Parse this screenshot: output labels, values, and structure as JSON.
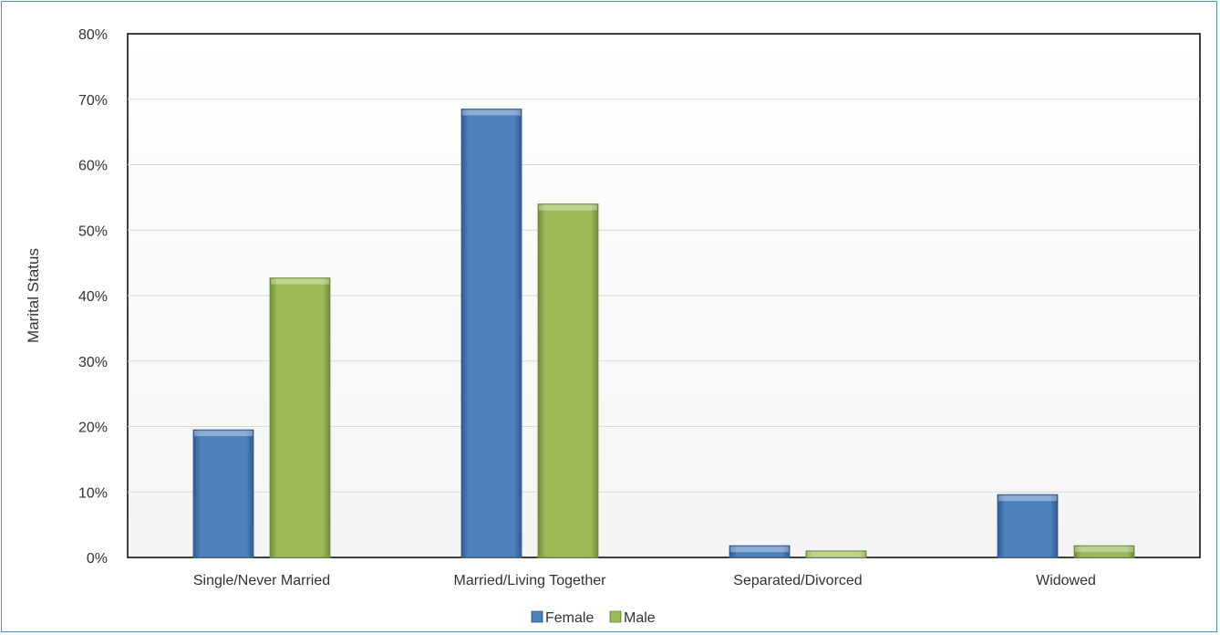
{
  "chart_data": {
    "type": "bar",
    "ylabel": "Marital Status",
    "xlabel": "",
    "categories": [
      "Single/Never Married",
      "Married/Living Together",
      "Separated/Divorced",
      "Widowed"
    ],
    "series": [
      {
        "name": "Female",
        "color": "#4f81bd",
        "values": [
          19.5,
          68.5,
          1.8,
          9.6
        ]
      },
      {
        "name": "Male",
        "color": "#9bbb59",
        "values": [
          42.7,
          54.0,
          1.0,
          1.8
        ]
      }
    ],
    "ylim": [
      0,
      80
    ],
    "yticks": [
      0,
      10,
      20,
      30,
      40,
      50,
      60,
      70,
      80
    ],
    "ytick_labels": [
      "0%",
      "10%",
      "20%",
      "30%",
      "40%",
      "50%",
      "60%",
      "70%",
      "80%"
    ],
    "grid": true,
    "legend": "bottom"
  }
}
